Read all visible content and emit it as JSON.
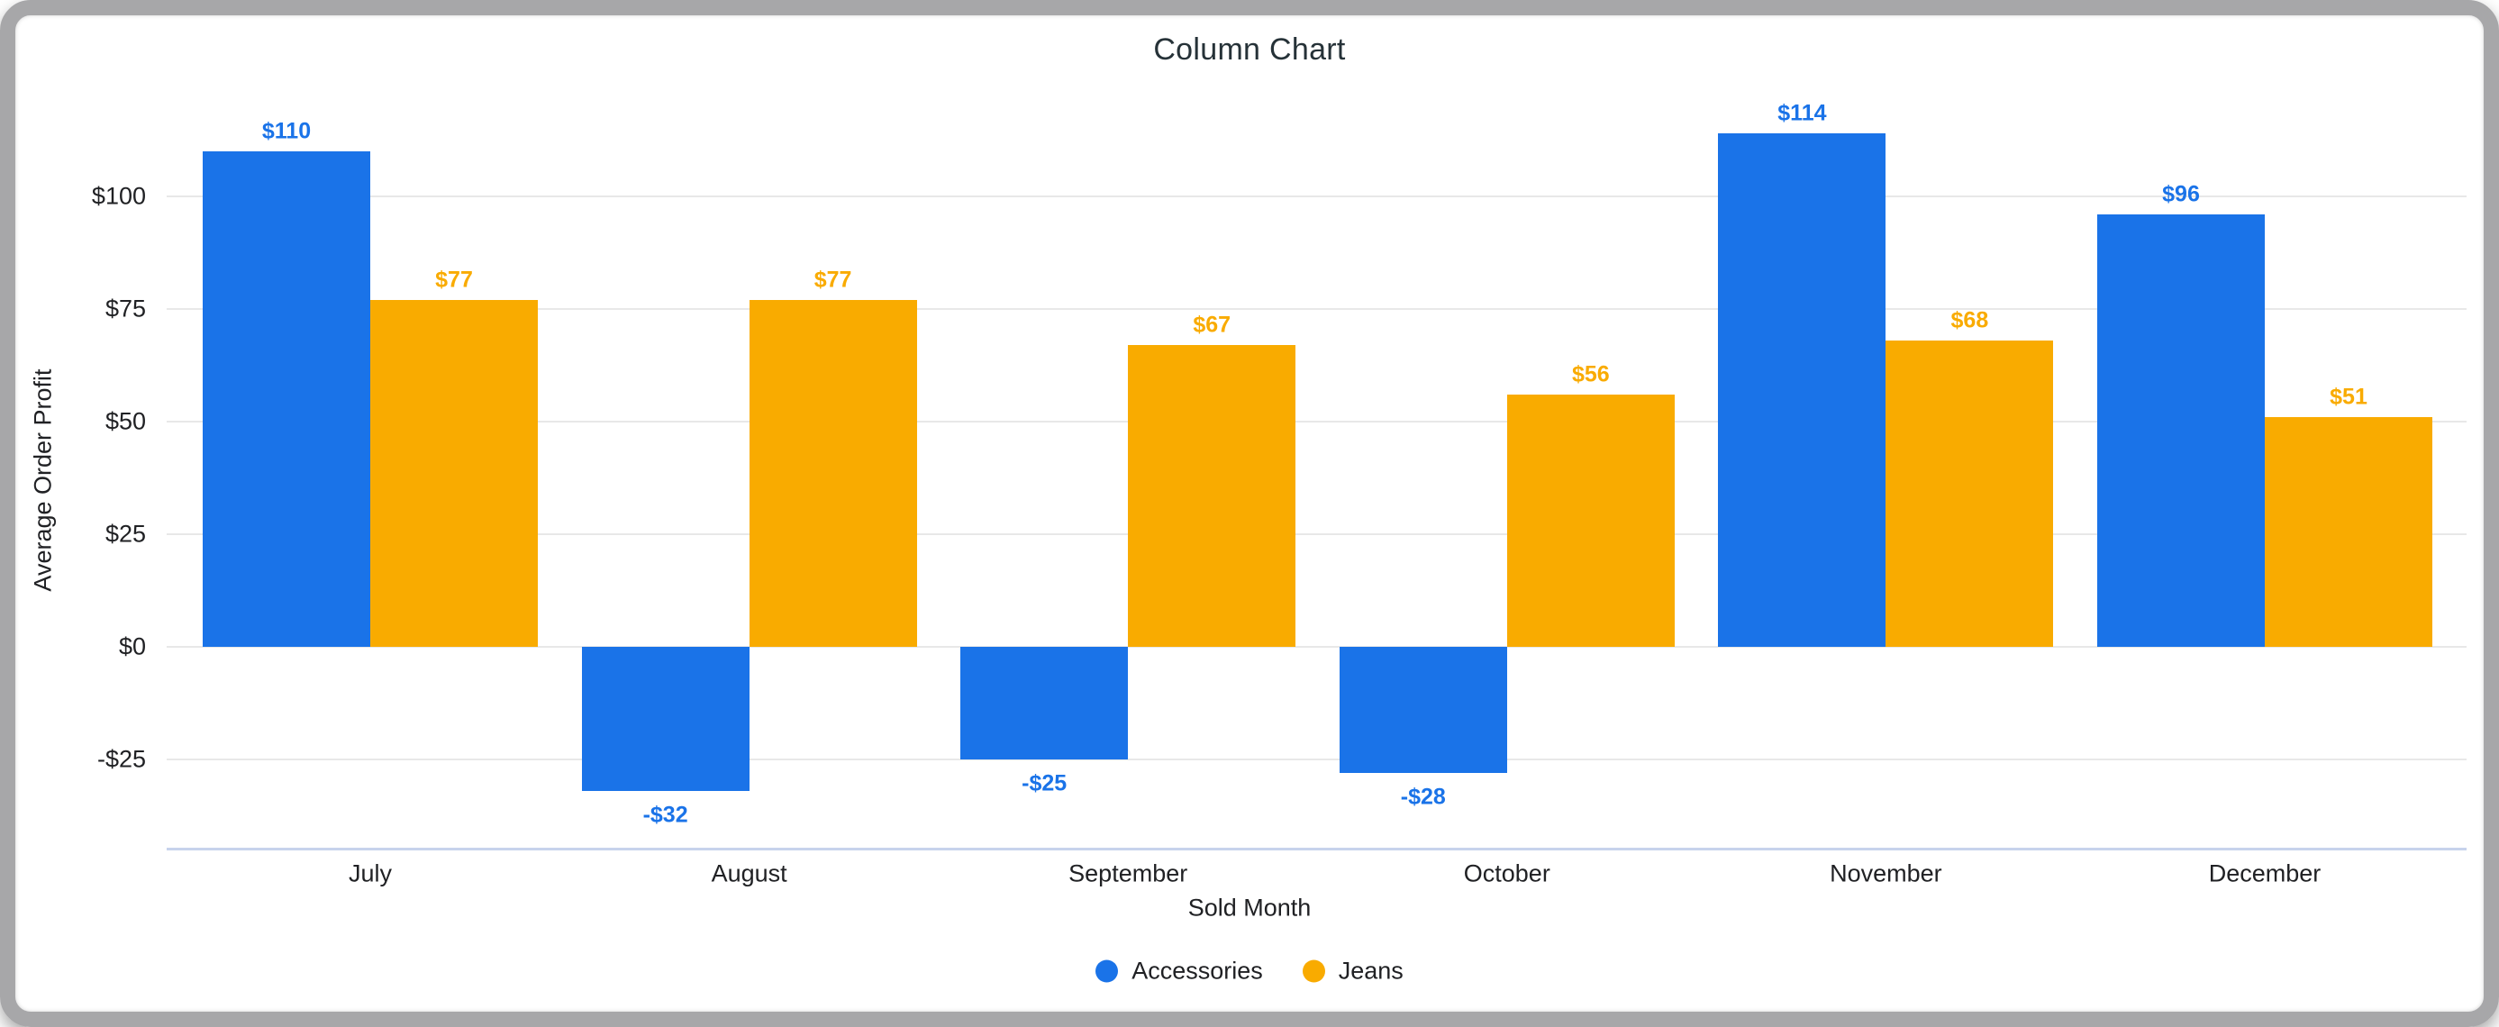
{
  "window": {
    "frame_color": "#a7a7a9"
  },
  "chart_data": {
    "type": "bar",
    "title": "Column Chart",
    "xlabel": "Sold Month",
    "ylabel": "Average Order Profit",
    "categories": [
      "July",
      "August",
      "September",
      "October",
      "November",
      "December"
    ],
    "series": [
      {
        "name": "Accessories",
        "color": "#1a73e8",
        "values": [
          110,
          -32,
          -25,
          -28,
          114,
          96
        ],
        "data_labels": [
          "$110",
          "-$32",
          "-$25",
          "-$28",
          "$114",
          "$96"
        ]
      },
      {
        "name": "Jeans",
        "color": "#f9ab00",
        "values": [
          77,
          77,
          67,
          56,
          68,
          51
        ],
        "data_labels": [
          "$77",
          "$77",
          "$67",
          "$56",
          "$68",
          "$51"
        ]
      }
    ],
    "y_ticks": [
      {
        "value": 100,
        "label": "$100"
      },
      {
        "value": 75,
        "label": "$75"
      },
      {
        "value": 50,
        "label": "$50"
      },
      {
        "value": 25,
        "label": "$25"
      },
      {
        "value": 0,
        "label": "$0"
      },
      {
        "value": -25,
        "label": "-$25"
      }
    ],
    "ylim": [
      -45,
      118
    ],
    "grid": true,
    "legend_position": "bottom",
    "colors": {
      "grid_line": "#e8e8e8",
      "axis_line": "#c7d3ec",
      "tick_text": "#202124",
      "title_text": "#263238"
    }
  }
}
